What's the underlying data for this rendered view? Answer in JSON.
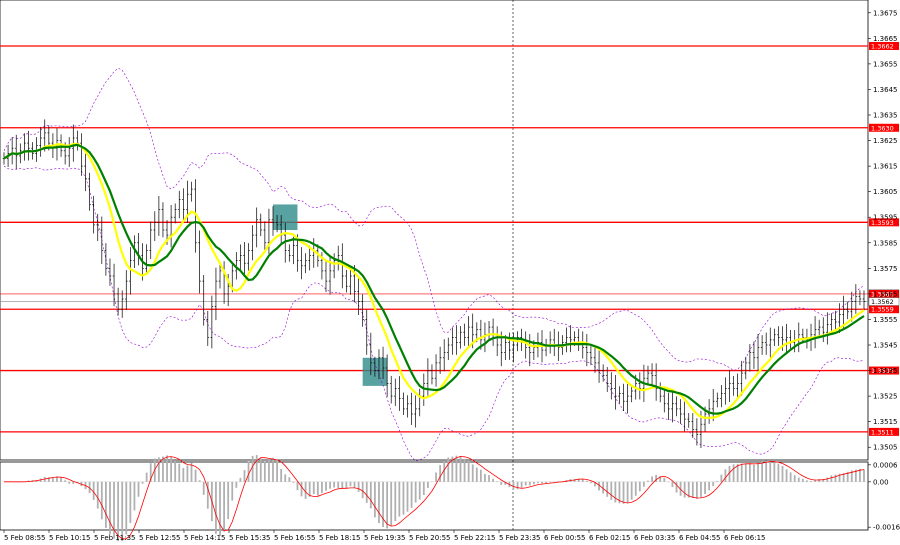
{
  "chart_data": {
    "type": "candlestick",
    "price_panel": {
      "ylim": [
        1.35,
        1.368
      ],
      "ticks": [
        "1.3675",
        "1.3665",
        "1.3655",
        "1.3645",
        "1.3635",
        "1.3625",
        "1.3615",
        "1.3605",
        "1.3595",
        "1.3585",
        "1.3575",
        "1.3565",
        "1.3555",
        "1.3545",
        "1.3535",
        "1.3525",
        "1.3515",
        "1.3505"
      ],
      "levels": [
        {
          "value": 1.3662,
          "label": "1.3662"
        },
        {
          "value": 1.363,
          "label": "1.3630"
        },
        {
          "value": 1.3593,
          "label": "1.3593"
        },
        {
          "value": 1.3559,
          "label": "1.3559"
        },
        {
          "value": 1.3535,
          "label": "1.3535"
        },
        {
          "value": 1.3511,
          "label": "1.3511"
        }
      ],
      "current_levels": [
        {
          "value": 1.3565,
          "label": "1.3565"
        },
        {
          "value": 1.3562,
          "label": "1.3562"
        }
      ],
      "highlight_boxes": [
        {
          "x_from": 66,
          "x_to": 72,
          "y_from": 1.359,
          "y_to": 1.36
        },
        {
          "x_from": 88,
          "x_to": 94,
          "y_from": 1.3529,
          "y_to": 1.354
        }
      ],
      "close": [
        1.3618,
        1.362,
        1.3622,
        1.3619,
        1.3621,
        1.3624,
        1.3622,
        1.362,
        1.3623,
        1.3626,
        1.3628,
        1.3624,
        1.3622,
        1.3625,
        1.3621,
        1.3619,
        1.3622,
        1.3626,
        1.3624,
        1.3615,
        1.361,
        1.36,
        1.3592,
        1.359,
        1.3582,
        1.3575,
        1.3572,
        1.3565,
        1.3559,
        1.3563,
        1.357,
        1.3578,
        1.3585,
        1.358,
        1.3575,
        1.3582,
        1.359,
        1.3593,
        1.3598,
        1.359,
        1.3588,
        1.3595,
        1.3598,
        1.3602,
        1.3598,
        1.3604,
        1.3606,
        1.3585,
        1.357,
        1.3555,
        1.3548,
        1.356,
        1.357,
        1.3574,
        1.3565,
        1.3568,
        1.3574,
        1.3578,
        1.358,
        1.3577,
        1.3582,
        1.3588,
        1.3594,
        1.359,
        1.3585,
        1.3594,
        1.3593,
        1.3592,
        1.3588,
        1.3582,
        1.358,
        1.3584,
        1.3578,
        1.3576,
        1.3578,
        1.358,
        1.3582,
        1.3578,
        1.3574,
        1.357,
        1.3574,
        1.3578,
        1.358,
        1.3572,
        1.3568,
        1.3572,
        1.3566,
        1.3562,
        1.3555,
        1.3545,
        1.3538,
        1.3535,
        1.354,
        1.3536,
        1.353,
        1.3525,
        1.3528,
        1.3524,
        1.352,
        1.3522,
        1.3518,
        1.352,
        1.3525,
        1.353,
        1.3535,
        1.3532,
        1.3538,
        1.354,
        1.3542,
        1.3545,
        1.3548,
        1.3546,
        1.355,
        1.3548,
        1.3552,
        1.3549,
        1.3551,
        1.3547,
        1.3549,
        1.3552,
        1.3548,
        1.3545,
        1.3542,
        1.3546,
        1.3543,
        1.3545,
        1.3548,
        1.3546,
        1.3544,
        1.3542,
        1.3544,
        1.3546,
        1.3543,
        1.3545,
        1.3547,
        1.3545,
        1.3544,
        1.3546,
        1.3548,
        1.3547,
        1.3548,
        1.3546,
        1.3544,
        1.3542,
        1.354,
        1.3538,
        1.3535,
        1.3533,
        1.353,
        1.3528,
        1.3525,
        1.3526,
        1.3523,
        1.3525,
        1.3527,
        1.353,
        1.3528,
        1.3532,
        1.3534,
        1.3533,
        1.3528,
        1.3525,
        1.3522,
        1.352,
        1.3522,
        1.352,
        1.3518,
        1.3516,
        1.3515,
        1.3512,
        1.351,
        1.3514,
        1.3518,
        1.352,
        1.3523,
        1.3524,
        1.3526,
        1.3528,
        1.353,
        1.3528,
        1.353,
        1.3534,
        1.3538,
        1.3542,
        1.354,
        1.3544,
        1.3546,
        1.3545,
        1.3547,
        1.3549,
        1.3548,
        1.3547,
        1.3548,
        1.3546,
        1.3547,
        1.3549,
        1.3548,
        1.3547,
        1.3549,
        1.3551,
        1.3552,
        1.355,
        1.3553,
        1.3555,
        1.3554,
        1.3557,
        1.3559,
        1.3558,
        1.3562,
        1.3564,
        1.3563,
        1.3562
      ]
    },
    "x_tick_labels": [
      "5 Feb 08:55",
      "5 Feb 10:15",
      "5 Feb 11:35",
      "5 Feb 12:55",
      "5 Feb 14:15",
      "5 Feb 15:35",
      "5 Feb 16:55",
      "5 Feb 18:15",
      "5 Feb 19:35",
      "5 Feb 20:55",
      "5 Feb 22:15",
      "5 Feb 23:35",
      "6 Feb 00:55",
      "6 Feb 02:15",
      "6 Feb 03:35",
      "6 Feb 04:55",
      "6 Feb 06:15"
    ],
    "oscillator_panel": {
      "ylim": [
        -0.0017,
        0.0007
      ],
      "ticks": [
        "0.0006",
        "0.00",
        "-0.0016"
      ]
    },
    "colors": {
      "level_line": "#ff0000",
      "fast_ma": "#ffff00",
      "slow_ma": "#008000",
      "bands": "#9400d3",
      "box": "#2e8b8b",
      "histogram": "#b0b0b0",
      "signal": "#ff0000"
    }
  }
}
